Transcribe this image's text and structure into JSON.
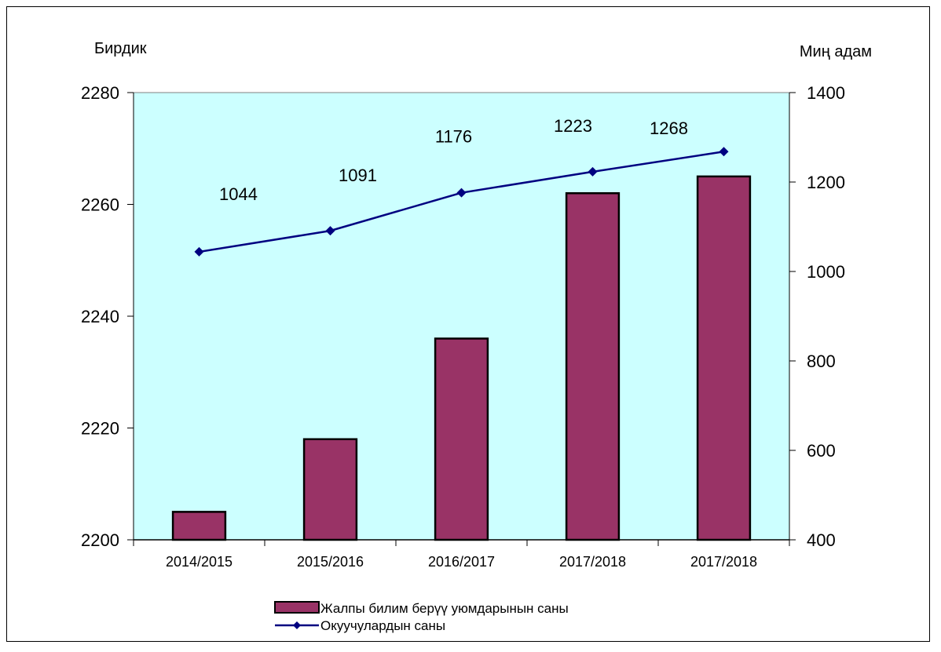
{
  "chart_data": {
    "type": "bar+line",
    "categories": [
      "2014/2015",
      "2015/2016",
      "2016/2017",
      "2017/2018",
      "2017/2018"
    ],
    "y_left": {
      "label": "Бирдик",
      "min": 2200,
      "max": 2280,
      "ticks": [
        2200,
        2220,
        2240,
        2260,
        2280
      ]
    },
    "y_right": {
      "label": "Миң адам",
      "min": 400,
      "max": 1400,
      "ticks": [
        400,
        600,
        800,
        1000,
        1200,
        1400
      ]
    },
    "series": [
      {
        "name": "Жалпы билим берүү уюмдарынын саны",
        "type": "bar",
        "axis": "left",
        "values": [
          2205,
          2218,
          2236,
          2262,
          2265
        ],
        "color": "#993366"
      },
      {
        "name": "Окуучулардын саны",
        "type": "line",
        "axis": "right",
        "values": [
          1044,
          1091,
          1176,
          1223,
          1268
        ],
        "labels": [
          "1044",
          "1091",
          "1176",
          "1223",
          "1268"
        ],
        "color": "#000080"
      }
    ],
    "plot_background": "#ccffff",
    "legend": "bottom-center"
  }
}
